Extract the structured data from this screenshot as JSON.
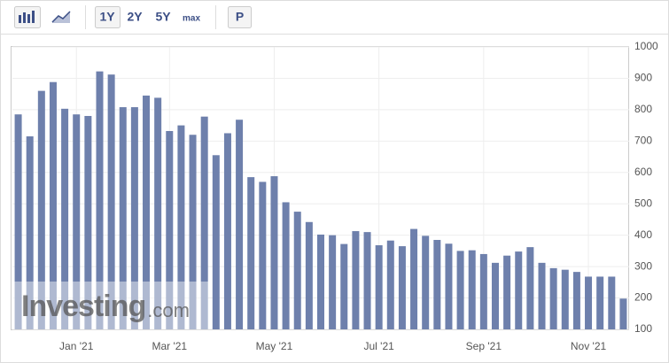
{
  "toolbar": {
    "ranges": [
      "1Y",
      "2Y",
      "5Y",
      "max"
    ],
    "p": "P"
  },
  "chart_data": {
    "type": "bar",
    "color": "#6e80ac",
    "grid": true,
    "watermark_brand": "Investing",
    "watermark_domain": ".com",
    "categories": [
      null,
      null,
      null,
      null,
      null,
      "Jan '21",
      null,
      null,
      null,
      null,
      null,
      null,
      null,
      "Mar '21",
      null,
      null,
      null,
      null,
      null,
      null,
      null,
      null,
      "May '21",
      null,
      null,
      null,
      null,
      null,
      null,
      null,
      null,
      "Jul '21",
      null,
      null,
      null,
      null,
      null,
      null,
      null,
      null,
      "Sep '21",
      null,
      null,
      null,
      null,
      null,
      null,
      null,
      null,
      "Nov '21",
      null,
      null,
      null
    ],
    "values": [
      785,
      715,
      860,
      888,
      803,
      785,
      780,
      922,
      912,
      808,
      808,
      845,
      838,
      732,
      750,
      720,
      778,
      655,
      725,
      768,
      585,
      570,
      588,
      505,
      475,
      442,
      402,
      400,
      372,
      413,
      410,
      368,
      383,
      365,
      420,
      398,
      385,
      373,
      350,
      352,
      340,
      312,
      335,
      348,
      362,
      312,
      295,
      290,
      283,
      268,
      268,
      268,
      198
    ],
    "ylim": [
      100,
      1000
    ],
    "yticks": [
      100,
      200,
      300,
      400,
      500,
      600,
      700,
      800,
      900,
      1000
    ]
  }
}
